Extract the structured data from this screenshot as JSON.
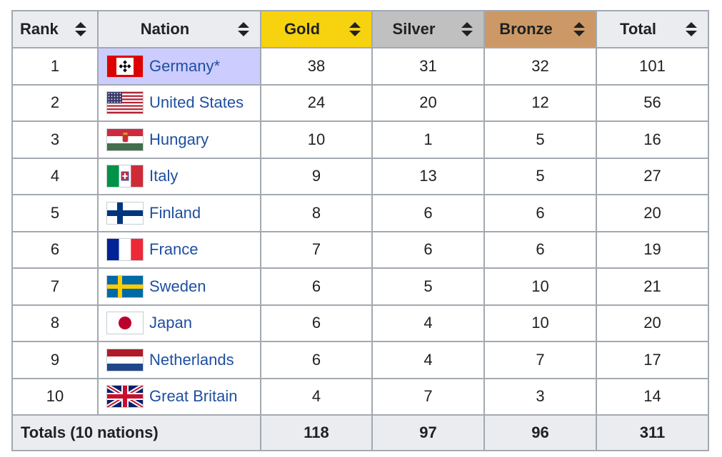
{
  "headers": {
    "rank": "Rank",
    "nation": "Nation",
    "gold": "Gold",
    "silver": "Silver",
    "bronze": "Bronze",
    "total": "Total"
  },
  "colors": {
    "gold": "#f7d20f",
    "silver": "#c0c0c0",
    "bronze": "#cc9966",
    "host_highlight": "#ccccff",
    "link": "#1f4fa0"
  },
  "rows": [
    {
      "rank": "1",
      "nation": "Germany*",
      "flag": "germany-flag-icon",
      "gold": "38",
      "silver": "31",
      "bronze": "32",
      "total": "101"
    },
    {
      "rank": "2",
      "nation": "United States",
      "flag": "united-states-flag-icon",
      "gold": "24",
      "silver": "20",
      "bronze": "12",
      "total": "56"
    },
    {
      "rank": "3",
      "nation": "Hungary",
      "flag": "hungary-flag-icon",
      "gold": "10",
      "silver": "1",
      "bronze": "5",
      "total": "16"
    },
    {
      "rank": "4",
      "nation": "Italy",
      "flag": "italy-flag-icon",
      "gold": "9",
      "silver": "13",
      "bronze": "5",
      "total": "27"
    },
    {
      "rank": "5",
      "nation": "Finland",
      "flag": "finland-flag-icon",
      "gold": "8",
      "silver": "6",
      "bronze": "6",
      "total": "20"
    },
    {
      "rank": "6",
      "nation": "France",
      "flag": "france-flag-icon",
      "gold": "7",
      "silver": "6",
      "bronze": "6",
      "total": "19"
    },
    {
      "rank": "7",
      "nation": "Sweden",
      "flag": "sweden-flag-icon",
      "gold": "6",
      "silver": "5",
      "bronze": "10",
      "total": "21"
    },
    {
      "rank": "8",
      "nation": "Japan",
      "flag": "japan-flag-icon",
      "gold": "6",
      "silver": "4",
      "bronze": "10",
      "total": "20"
    },
    {
      "rank": "9",
      "nation": "Netherlands",
      "flag": "netherlands-flag-icon",
      "gold": "6",
      "silver": "4",
      "bronze": "7",
      "total": "17"
    },
    {
      "rank": "10",
      "nation": "Great Britain",
      "flag": "great-britain-flag-icon",
      "gold": "4",
      "silver": "7",
      "bronze": "3",
      "total": "14"
    }
  ],
  "totals": {
    "label": "Totals (10 nations)",
    "gold": "118",
    "silver": "97",
    "bronze": "96",
    "total": "311"
  }
}
